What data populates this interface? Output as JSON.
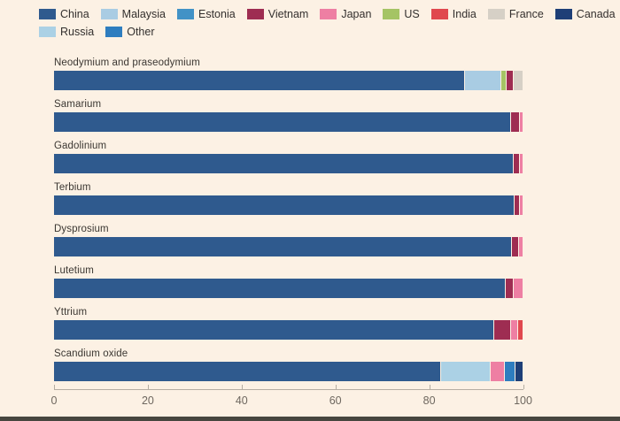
{
  "colors": {
    "China": "#2f5a8e",
    "Malaysia": "#a9cce3",
    "Estonia": "#4292c6",
    "Vietnam": "#9e2d52",
    "Japan": "#ee7fa3",
    "US": "#a5c465",
    "India": "#e0484e",
    "France": "#d6d0c6",
    "Canada": "#1e3f77",
    "Russia": "#abd1e5",
    "Other": "#2e7dbf",
    "background": "#fcf1e4",
    "axis": "#b5ada2",
    "label_text": "#3b3732",
    "tick_text": "#6e675f"
  },
  "legend": {
    "items": [
      {
        "label": "China"
      },
      {
        "label": "Malaysia"
      },
      {
        "label": "Estonia"
      },
      {
        "label": "Vietnam"
      },
      {
        "label": "Japan"
      },
      {
        "label": "US"
      },
      {
        "label": "India"
      },
      {
        "label": "France"
      },
      {
        "label": "Canada"
      },
      {
        "label": "Russia"
      },
      {
        "label": "Other"
      }
    ],
    "row_break_after": 9
  },
  "chart_data": {
    "type": "bar",
    "stacked": true,
    "orientation": "horizontal",
    "unit": "%",
    "xlim": [
      0,
      100
    ],
    "x_ticks": [
      0,
      20,
      40,
      60,
      80,
      100
    ],
    "grid": false,
    "legend_position": "top",
    "bars": [
      {
        "label": "Neodymium and praseodymium",
        "segments": [
          {
            "country": "China",
            "value": 87.5
          },
          {
            "country": "Malaysia",
            "value": 7.8
          },
          {
            "country": "US",
            "value": 1.2
          },
          {
            "country": "Vietnam",
            "value": 1.4
          },
          {
            "country": "France",
            "value": 2.1
          }
        ]
      },
      {
        "label": "Samarium",
        "segments": [
          {
            "country": "China",
            "value": 97.3
          },
          {
            "country": "Vietnam",
            "value": 1.9
          },
          {
            "country": "Japan",
            "value": 0.8
          }
        ]
      },
      {
        "label": "Gadolinium",
        "segments": [
          {
            "country": "China",
            "value": 97.9
          },
          {
            "country": "Vietnam",
            "value": 1.3
          },
          {
            "country": "Japan",
            "value": 0.8
          }
        ]
      },
      {
        "label": "Terbium",
        "segments": [
          {
            "country": "China",
            "value": 98.2
          },
          {
            "country": "Vietnam",
            "value": 1.1
          },
          {
            "country": "Japan",
            "value": 0.7
          }
        ]
      },
      {
        "label": "Dysprosium",
        "segments": [
          {
            "country": "China",
            "value": 97.6
          },
          {
            "country": "Vietnam",
            "value": 1.5
          },
          {
            "country": "Japan",
            "value": 0.9
          }
        ]
      },
      {
        "label": "Lutetium",
        "segments": [
          {
            "country": "China",
            "value": 96.2
          },
          {
            "country": "Vietnam",
            "value": 1.8
          },
          {
            "country": "Japan",
            "value": 2.0
          }
        ]
      },
      {
        "label": "Yttrium",
        "segments": [
          {
            "country": "China",
            "value": 93.7
          },
          {
            "country": "Vietnam",
            "value": 3.6
          },
          {
            "country": "Japan",
            "value": 1.6
          },
          {
            "country": "India",
            "value": 1.1
          }
        ]
      },
      {
        "label": "Scandium oxide",
        "segments": [
          {
            "country": "China",
            "value": 82.4
          },
          {
            "country": "Russia",
            "value": 10.6
          },
          {
            "country": "Japan",
            "value": 3.0
          },
          {
            "country": "Other",
            "value": 2.3
          },
          {
            "country": "Canada",
            "value": 1.7
          }
        ]
      }
    ]
  }
}
